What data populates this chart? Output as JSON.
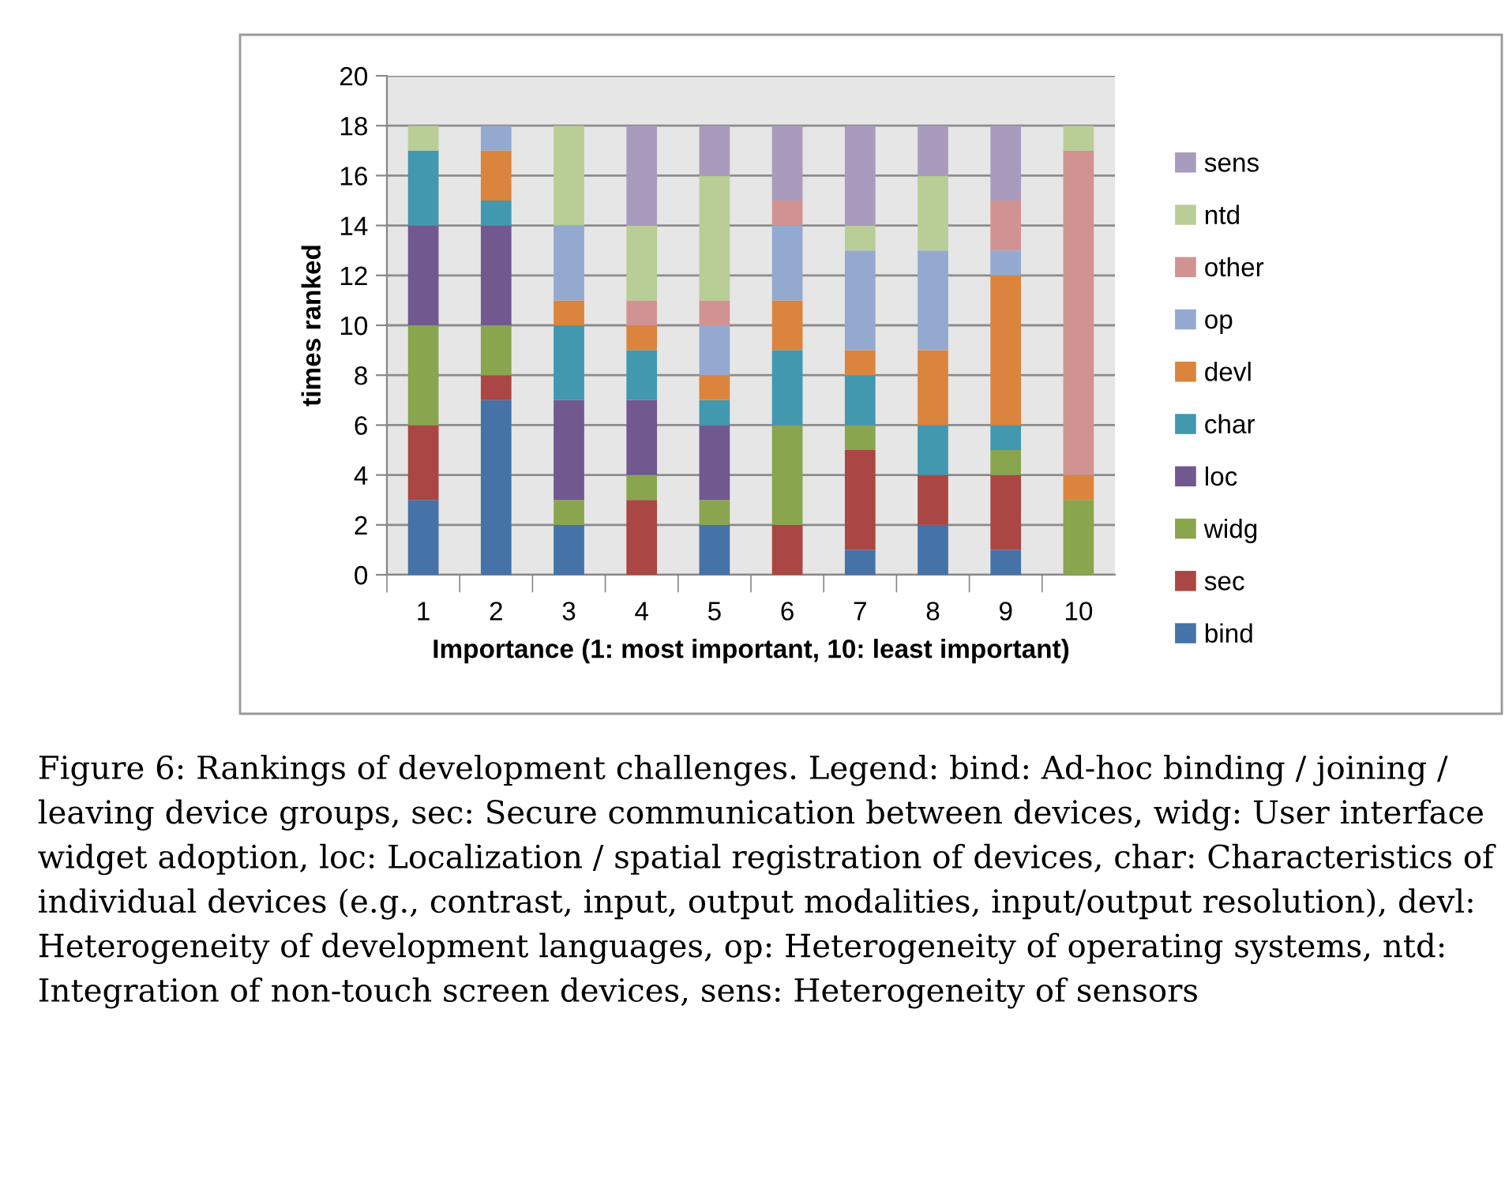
{
  "chart_data": {
    "type": "bar",
    "stacked": true,
    "xlabel": "Importance (1: most important, 10: least important)",
    "ylabel": "times ranked",
    "categories": [
      "1",
      "2",
      "3",
      "4",
      "5",
      "6",
      "7",
      "8",
      "9",
      "10"
    ],
    "series": [
      {
        "name": "bind",
        "color": "#4572a7",
        "values": [
          3,
          7,
          2,
          0,
          2,
          0,
          1,
          2,
          1,
          0
        ]
      },
      {
        "name": "sec",
        "color": "#aa4643",
        "values": [
          3,
          1,
          0,
          3,
          0,
          2,
          4,
          2,
          3,
          0
        ]
      },
      {
        "name": "widg",
        "color": "#89a54e",
        "values": [
          4,
          2,
          1,
          1,
          1,
          4,
          1,
          0,
          1,
          3
        ]
      },
      {
        "name": "loc",
        "color": "#71588f",
        "values": [
          4,
          4,
          4,
          3,
          3,
          0,
          0,
          0,
          0,
          0
        ]
      },
      {
        "name": "char",
        "color": "#4198af",
        "values": [
          3,
          1,
          3,
          2,
          1,
          3,
          2,
          2,
          1,
          0
        ]
      },
      {
        "name": "devl",
        "color": "#db843d",
        "values": [
          0,
          2,
          1,
          1,
          1,
          2,
          1,
          3,
          6,
          1
        ]
      },
      {
        "name": "op",
        "color": "#93a9cf",
        "values": [
          0,
          1,
          3,
          0,
          2,
          3,
          4,
          4,
          1,
          0
        ]
      },
      {
        "name": "other",
        "color": "#d19392",
        "values": [
          0,
          0,
          0,
          1,
          1,
          1,
          0,
          0,
          2,
          13
        ]
      },
      {
        "name": "ntd",
        "color": "#b9cd96",
        "values": [
          1,
          0,
          4,
          3,
          5,
          0,
          1,
          3,
          0,
          1
        ]
      },
      {
        "name": "sens",
        "color": "#a99bbd",
        "values": [
          0,
          0,
          0,
          4,
          2,
          3,
          4,
          2,
          3,
          0
        ]
      }
    ],
    "ylim": [
      0,
      20
    ],
    "yticks": [
      0,
      2,
      4,
      6,
      8,
      10,
      12,
      14,
      16,
      18,
      20
    ],
    "grid": "y",
    "legend": "right",
    "annotations": [
      "Figure 6: Rankings of development challenges. Legend: bind: Ad-hoc binding / joining / leaving device groups, sec: Secure communication between devices, widg: User interface widget adoption, loc: Localization / spatial registration of devices, char: Characteristics of individual devices (e.g., contrast, input, output modalities, input/output resolution), devl: Heterogeneity of development languages, op: Heterogeneity of operating systems, ntd: Integration of non-touch screen devices, sens: Heterogeneity of sensors"
    ]
  }
}
